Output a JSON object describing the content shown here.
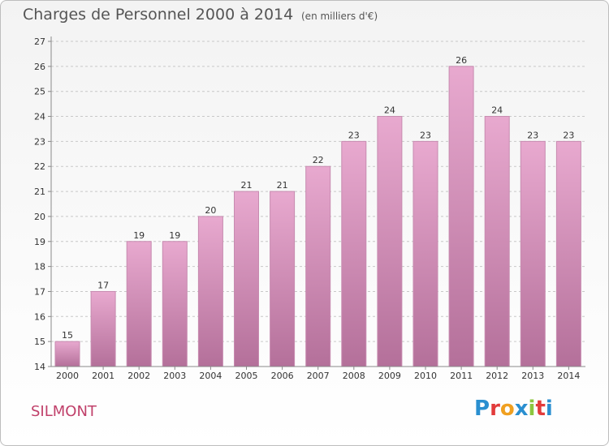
{
  "header": {
    "title": "Charges de Personnel 2000 à 2014",
    "subtitle": "(en milliers d'€)"
  },
  "footer": {
    "town": "SILMONT",
    "logo_text": "Proxiti",
    "logo_letters": [
      "P",
      "r",
      "o",
      "x",
      "i",
      "t",
      "i"
    ],
    "logo_colors": [
      "#2a8fd0",
      "#e23b3b",
      "#f0a020",
      "#2a8fd0",
      "#8cc63f",
      "#e23b3b",
      "#2a8fd0"
    ]
  },
  "colors": {
    "bar_top": "#e8a9cf",
    "bar_bottom": "#b4709a",
    "bar_edge": "#c78bb0",
    "axis": "#8a8a8a",
    "grid": "#c8c8c8",
    "text": "#333333",
    "title": "#555555",
    "town": "#c0406a"
  },
  "chart_data": {
    "type": "bar",
    "title": "Charges de Personnel 2000 à 2014",
    "subtitle": "(en milliers d'€)",
    "xlabel": "",
    "ylabel": "",
    "categories": [
      "2000",
      "2001",
      "2002",
      "2003",
      "2004",
      "2005",
      "2006",
      "2007",
      "2008",
      "2009",
      "2010",
      "2011",
      "2012",
      "2013",
      "2014"
    ],
    "values": [
      15,
      17,
      19,
      19,
      20,
      21,
      21,
      22,
      23,
      24,
      23,
      26,
      24,
      23,
      23
    ],
    "ylim": [
      14,
      27
    ],
    "yticks": [
      14,
      15,
      16,
      17,
      18,
      19,
      20,
      21,
      22,
      23,
      24,
      25,
      26,
      27
    ],
    "grid": "horizontal dashed",
    "legend": "none"
  }
}
